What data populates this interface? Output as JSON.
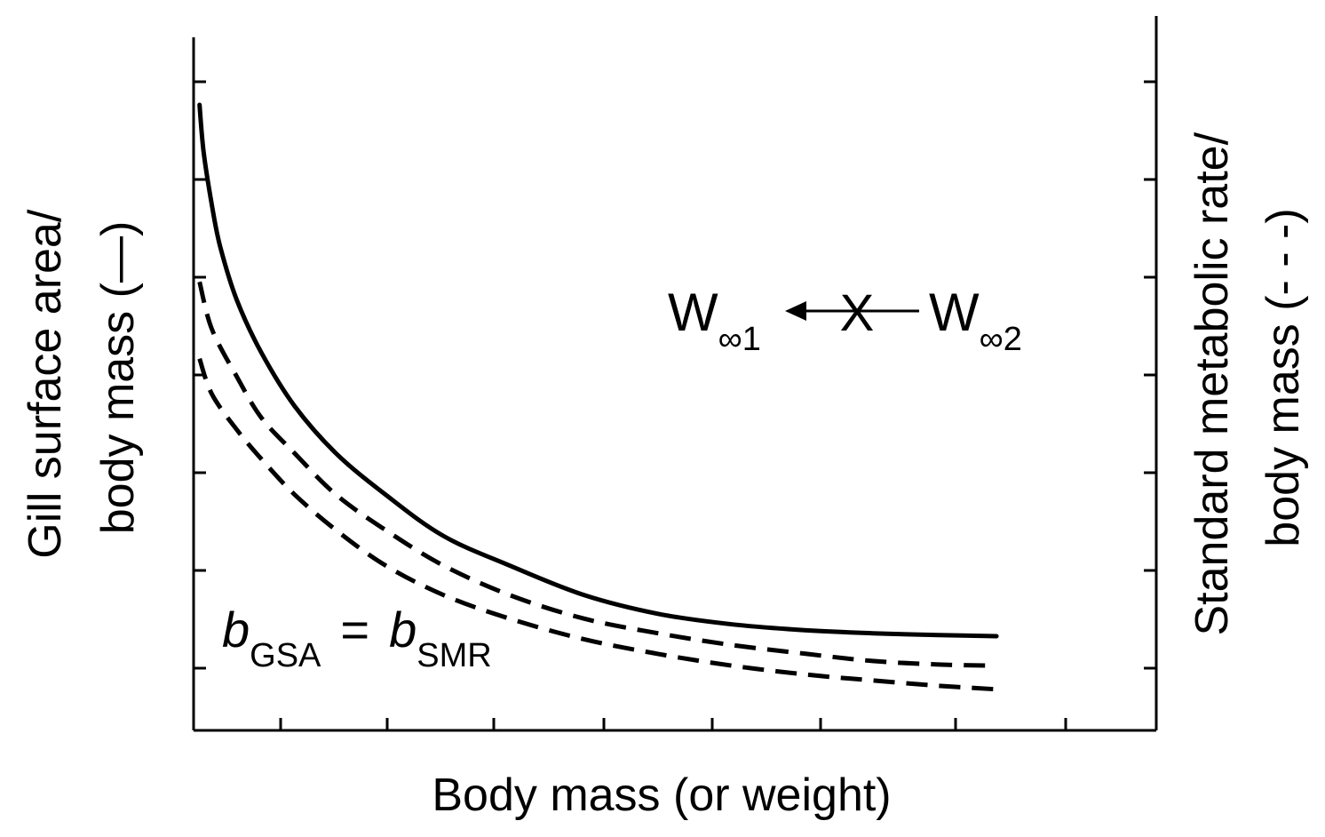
{
  "chart_data": {
    "type": "line",
    "title": "",
    "xlabel": "Body mass (or weight)",
    "ylabel_left": [
      "Gill surface area/",
      "body mass (—)"
    ],
    "ylabel_right": [
      "Standard metabolic rate/",
      "body mass (- - -)"
    ],
    "xlim": [
      0,
      1
    ],
    "ylim": [
      0,
      1
    ],
    "grid": false,
    "x_ticks_count": 8,
    "y_ticks_count": 7,
    "series": [
      {
        "name": "Gill surface area/body mass",
        "style": "solid",
        "x": [
          0.005,
          0.01,
          0.02,
          0.03,
          0.05,
          0.08,
          0.12,
          0.17,
          0.23,
          0.3,
          0.38,
          0.47,
          0.56,
          0.65,
          0.74,
          0.82,
          0.9,
          0.97
        ],
        "y": [
          1.0,
          0.92,
          0.83,
          0.76,
          0.67,
          0.58,
          0.49,
          0.41,
          0.34,
          0.27,
          0.22,
          0.17,
          0.138,
          0.12,
          0.11,
          0.105,
          0.102,
          0.1
        ]
      },
      {
        "name": "Standard metabolic rate/body mass (upper)",
        "style": "dashed",
        "x": [
          0.005,
          0.02,
          0.05,
          0.08,
          0.12,
          0.17,
          0.23,
          0.3,
          0.38,
          0.47,
          0.56,
          0.65,
          0.74,
          0.82,
          0.9,
          0.97
        ],
        "y": [
          0.7,
          0.62,
          0.54,
          0.47,
          0.41,
          0.34,
          0.28,
          0.22,
          0.17,
          0.13,
          0.105,
          0.085,
          0.07,
          0.058,
          0.052,
          0.05
        ]
      },
      {
        "name": "Standard metabolic rate/body mass (lower)",
        "style": "dashed",
        "x": [
          0.005,
          0.02,
          0.05,
          0.08,
          0.12,
          0.17,
          0.23,
          0.3,
          0.38,
          0.47,
          0.56,
          0.65,
          0.74,
          0.82,
          0.9,
          0.97
        ],
        "y": [
          0.57,
          0.51,
          0.45,
          0.4,
          0.34,
          0.28,
          0.22,
          0.17,
          0.13,
          0.095,
          0.07,
          0.05,
          0.035,
          0.025,
          0.016,
          0.01
        ]
      }
    ],
    "annotations": {
      "equation": {
        "b1": "b",
        "sub1": "GSA",
        "eq": "=",
        "b2": "b",
        "sub2": "SMR"
      },
      "shift": {
        "left": "W",
        "left_sub": "∞1",
        "right": "W",
        "right_sub": "∞2",
        "marker": "X"
      }
    }
  }
}
